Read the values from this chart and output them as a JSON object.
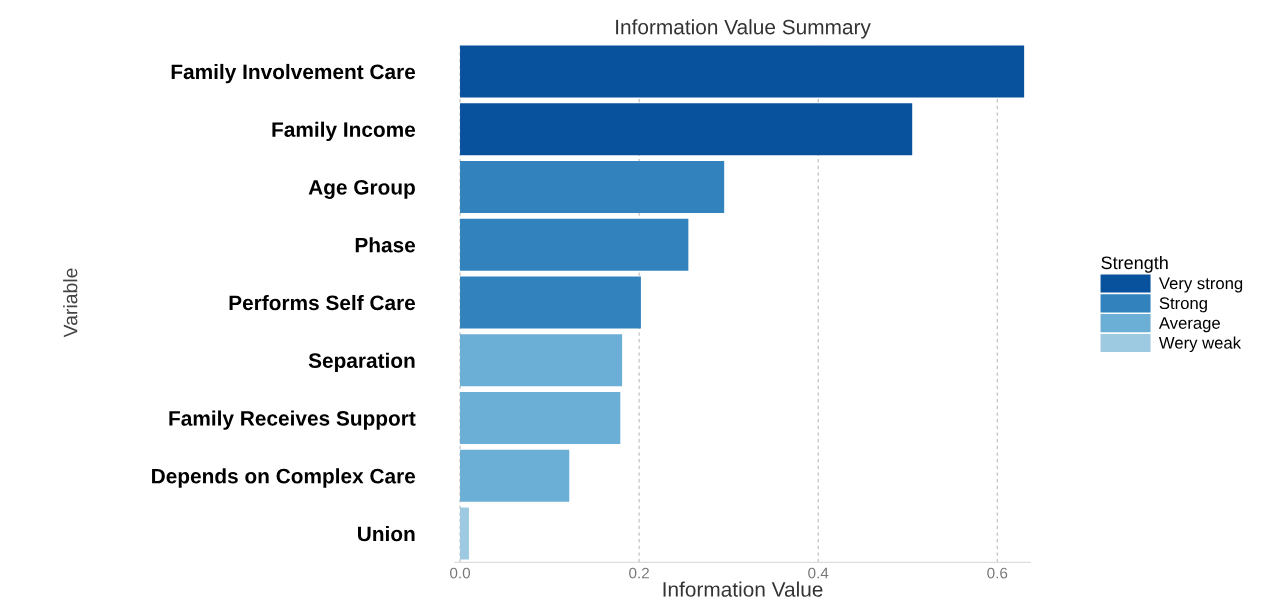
{
  "chart_data": {
    "type": "bar",
    "orientation": "horizontal",
    "title": "Information Value Summary",
    "xlabel": "Information Value",
    "ylabel": "Variable",
    "legend_title": "Strength",
    "legend": "right",
    "categories": [
      "Family Involvement Care",
      "Family Income",
      "Age Group",
      "Phase",
      "Performs Self Care",
      "Separation",
      "Family Receives Support",
      "Depends on Complex Care",
      "Union"
    ],
    "series": [
      {
        "name": "Very strong",
        "color": "#08519c",
        "values": [
          0.63,
          0.505,
          null,
          null,
          null,
          null,
          null,
          null,
          null
        ]
      },
      {
        "name": "Strong",
        "color": "#3182bd",
        "values": [
          null,
          null,
          0.295,
          0.255,
          0.202,
          null,
          null,
          null,
          null
        ]
      },
      {
        "name": "Average",
        "color": "#6baed6",
        "values": [
          null,
          null,
          null,
          null,
          null,
          0.181,
          0.179,
          0.122,
          null
        ]
      },
      {
        "name": "Wery weak",
        "color": "#9ecae1",
        "values": [
          null,
          null,
          null,
          null,
          null,
          null,
          null,
          null,
          0.01
        ]
      }
    ],
    "xlim": [
      -0.006,
      0.637
    ],
    "xticks": [
      {
        "value": 0,
        "label": "0.0"
      },
      0.2,
      0.4,
      0.6
    ],
    "grid": "x"
  }
}
